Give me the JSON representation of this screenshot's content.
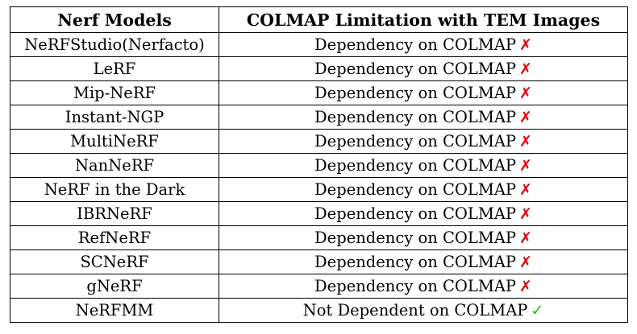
{
  "table": {
    "headers": [
      "Nerf Models",
      "COLMAP Limitation with TEM Images"
    ],
    "rows": [
      {
        "model": "NeRFStudio(Nerfacto)",
        "limitation": "Dependency on COLMAP",
        "mark": "✗",
        "mark_type": "cross"
      },
      {
        "model": "LeRF",
        "limitation": "Dependency on COLMAP",
        "mark": "✗",
        "mark_type": "cross"
      },
      {
        "model": "Mip-NeRF",
        "limitation": "Dependency on COLMAP",
        "mark": "✗",
        "mark_type": "cross"
      },
      {
        "model": "Instant-NGP",
        "limitation": "Dependency on COLMAP",
        "mark": "✗",
        "mark_type": "cross"
      },
      {
        "model": "MultiNeRF",
        "limitation": "Dependency on COLMAP",
        "mark": "✗",
        "mark_type": "cross"
      },
      {
        "model": "NanNeRF",
        "limitation": "Dependency on COLMAP",
        "mark": "✗",
        "mark_type": "cross"
      },
      {
        "model": "NeRF in the Dark",
        "limitation": "Dependency on COLMAP",
        "mark": "✗",
        "mark_type": "cross"
      },
      {
        "model": "IBRNeRF",
        "limitation": "Dependency on COLMAP",
        "mark": "✗",
        "mark_type": "cross"
      },
      {
        "model": "RefNeRF",
        "limitation": "Dependency on COLMAP",
        "mark": "✗",
        "mark_type": "cross"
      },
      {
        "model": "SCNeRF",
        "limitation": "Dependency on COLMAP",
        "mark": "✗",
        "mark_type": "cross"
      },
      {
        "model": "gNeRF",
        "limitation": "Dependency on COLMAP",
        "mark": "✗",
        "mark_type": "cross"
      },
      {
        "model": "NeRFMM",
        "limitation": "Not Dependent on COLMAP",
        "mark": "✓",
        "mark_type": "check"
      }
    ]
  },
  "colors": {
    "cross": "#e00000",
    "check": "#22bb22",
    "border": "#000000"
  }
}
